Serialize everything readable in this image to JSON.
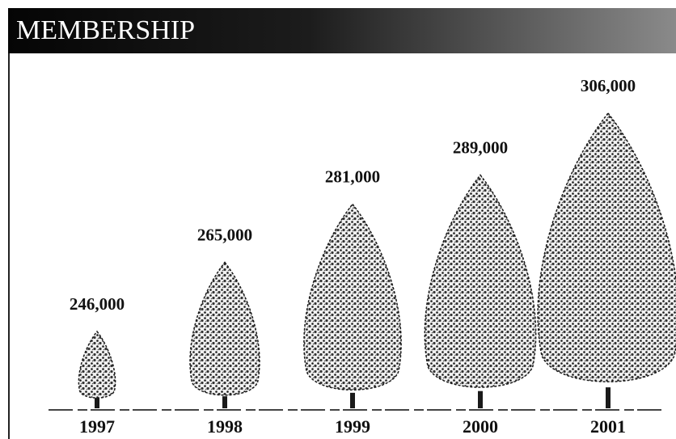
{
  "chart_data": {
    "type": "pictograph",
    "title": "MEMBERSHIP",
    "categories": [
      "1997",
      "1998",
      "1999",
      "2000",
      "2001"
    ],
    "values": [
      246000,
      265000,
      281000,
      289000,
      306000
    ],
    "value_labels": [
      "246,000",
      "265,000",
      "281,000",
      "289,000",
      "306,000"
    ],
    "color": "#1a1a1a"
  }
}
